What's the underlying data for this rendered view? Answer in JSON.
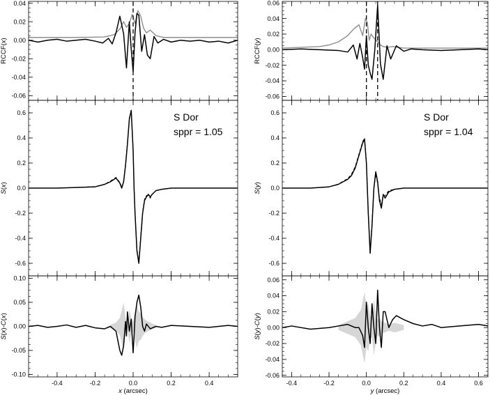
{
  "chart_data": [
    {
      "id": "x-rccf",
      "type": "line",
      "ylabel": "RCCF(x)",
      "xlim": [
        -0.55,
        0.55
      ],
      "ylim": [
        -0.065,
        0.042
      ],
      "xticks": [
        -0.4,
        -0.2,
        0.0,
        0.2,
        0.4
      ],
      "yticks": [
        -0.06,
        -0.04,
        -0.02,
        0.0,
        0.02,
        0.04
      ],
      "ytick_labels": [
        "-0.06",
        "-0.04",
        "-0.02",
        "0.00",
        "0.02",
        "0.04"
      ],
      "show_x_tick_labels": false,
      "vlines": [
        0.0
      ],
      "series": [
        {
          "style": "gray",
          "x": [
            -0.55,
            -0.3,
            -0.15,
            -0.1,
            -0.07,
            -0.05,
            -0.035,
            -0.02,
            -0.005,
            0.01,
            0.025,
            0.04,
            0.055,
            0.07,
            0.09,
            0.12,
            0.16,
            0.55
          ],
          "y": [
            0.003,
            0.003,
            0.0035,
            0.006,
            0.012,
            0.02,
            0.014,
            0.018,
            0.028,
            0.018,
            0.032,
            0.026,
            0.013,
            0.008,
            0.011,
            0.005,
            0.003,
            0.003
          ]
        },
        {
          "style": "black",
          "x": [
            -0.55,
            -0.5,
            -0.45,
            -0.4,
            -0.35,
            -0.3,
            -0.25,
            -0.2,
            -0.16,
            -0.13,
            -0.11,
            -0.09,
            -0.07,
            -0.05,
            -0.035,
            -0.02,
            -0.01,
            0.0,
            0.01,
            0.02,
            0.03,
            0.045,
            0.06,
            0.075,
            0.09,
            0.11,
            0.13,
            0.16,
            0.2,
            0.25,
            0.3,
            0.35,
            0.4,
            0.45,
            0.5,
            0.55
          ],
          "y": [
            0.0,
            -0.002,
            0.0,
            0.001,
            -0.001,
            0.0,
            0.001,
            -0.001,
            -0.003,
            0.002,
            -0.004,
            0.008,
            0.026,
            0.007,
            -0.03,
            0.02,
            -0.01,
            -0.034,
            0.008,
            0.029,
            0.027,
            -0.012,
            0.006,
            -0.016,
            -0.02,
            0.004,
            -0.003,
            0.001,
            -0.002,
            0.0,
            -0.001,
            0.0,
            -0.002,
            -0.001,
            -0.003,
            0.0
          ]
        }
      ]
    },
    {
      "id": "y-rccf",
      "type": "line",
      "ylabel": "RCCF(y)",
      "xlim": [
        -0.45,
        0.65
      ],
      "ylim": [
        -0.065,
        0.062
      ],
      "xticks": [
        -0.4,
        -0.2,
        0.0,
        0.2,
        0.4,
        0.6
      ],
      "yticks": [
        -0.06,
        -0.04,
        -0.02,
        0.0,
        0.02,
        0.04,
        0.06
      ],
      "ytick_labels": [
        "-0.06",
        "-0.04",
        "-0.02",
        "0.00",
        "0.02",
        "0.04",
        "0.06"
      ],
      "show_x_tick_labels": false,
      "vlines": [
        0.0,
        0.06
      ],
      "series": [
        {
          "style": "gray",
          "x": [
            -0.45,
            -0.35,
            -0.25,
            -0.2,
            -0.15,
            -0.1,
            -0.07,
            -0.04,
            -0.02,
            -0.005,
            0.005,
            0.015,
            0.025,
            0.04,
            0.06,
            0.075,
            0.09,
            0.11,
            0.14,
            0.2,
            0.3,
            0.65
          ],
          "y": [
            0.002,
            0.003,
            0.004,
            0.006,
            0.01,
            0.018,
            0.026,
            0.032,
            0.018,
            0.04,
            0.035,
            0.012,
            0.02,
            0.015,
            0.01,
            0.006,
            0.004,
            0.003,
            0.004,
            0.002,
            0.002,
            0.002
          ]
        },
        {
          "style": "black",
          "x": [
            -0.45,
            -0.35,
            -0.25,
            -0.15,
            -0.1,
            -0.07,
            -0.05,
            -0.035,
            -0.02,
            -0.01,
            0.0,
            0.01,
            0.02,
            0.03,
            0.045,
            0.06,
            0.075,
            0.09,
            0.11,
            0.13,
            0.16,
            0.2,
            0.24,
            0.3,
            0.4,
            0.5,
            0.6,
            0.65
          ],
          "y": [
            0.0,
            0.001,
            0.0,
            -0.001,
            -0.003,
            0.006,
            -0.012,
            0.008,
            -0.01,
            -0.025,
            0.018,
            -0.02,
            -0.03,
            -0.038,
            0.0,
            0.057,
            -0.018,
            -0.038,
            0.005,
            -0.012,
            0.005,
            -0.002,
            0.001,
            0.0,
            -0.001,
            0.0,
            0.001,
            0.0
          ]
        }
      ]
    },
    {
      "id": "x-spectrum",
      "type": "line",
      "ylabel": "S(x)",
      "annotation": [
        "S Dor",
        "sppr = 1.05"
      ],
      "xlim": [
        -0.55,
        0.55
      ],
      "ylim": [
        -0.7,
        0.7
      ],
      "xticks": [
        -0.4,
        -0.2,
        0.0,
        0.2,
        0.4
      ],
      "yticks": [
        -0.6,
        -0.4,
        -0.2,
        0.0,
        0.2,
        0.4,
        0.6
      ],
      "ytick_labels": [
        "-0.6",
        "-0.4",
        "-0.2",
        "0.0",
        "0.2",
        "0.4",
        "0.6"
      ],
      "show_x_tick_labels": false,
      "series": [
        {
          "style": "black",
          "x": [
            -0.55,
            -0.4,
            -0.3,
            -0.2,
            -0.15,
            -0.12,
            -0.09,
            -0.07,
            -0.06,
            -0.05,
            -0.04,
            -0.03,
            -0.02,
            -0.01,
            0.0,
            0.005,
            0.01,
            0.02,
            0.03,
            0.04,
            0.05,
            0.06,
            0.07,
            0.08,
            0.09,
            0.1,
            0.12,
            0.15,
            0.2,
            0.3,
            0.4,
            0.55
          ],
          "y": [
            0.0,
            0.0,
            0.005,
            0.01,
            0.03,
            0.05,
            0.08,
            0.04,
            0.0,
            0.05,
            0.18,
            0.35,
            0.55,
            0.62,
            0.3,
            0.0,
            -0.2,
            -0.5,
            -0.6,
            -0.4,
            -0.2,
            -0.1,
            -0.07,
            -0.05,
            -0.07,
            -0.05,
            -0.02,
            -0.01,
            0.0,
            0.0,
            0.0,
            0.0
          ]
        },
        {
          "style": "dashed",
          "x": [
            -0.55,
            -0.4,
            -0.3,
            -0.2,
            -0.15,
            -0.12,
            -0.09,
            -0.07,
            -0.06,
            -0.05,
            -0.04,
            -0.03,
            -0.02,
            -0.01,
            0.0,
            0.005,
            0.01,
            0.02,
            0.03,
            0.04,
            0.05,
            0.06,
            0.07,
            0.08,
            0.09,
            0.1,
            0.12,
            0.15,
            0.2,
            0.3,
            0.4,
            0.55
          ],
          "y": [
            0.0,
            0.0,
            0.005,
            0.012,
            0.03,
            0.055,
            0.085,
            0.045,
            0.005,
            0.055,
            0.19,
            0.36,
            0.56,
            0.61,
            0.3,
            0.0,
            -0.2,
            -0.49,
            -0.59,
            -0.39,
            -0.19,
            -0.09,
            -0.06,
            -0.06,
            -0.08,
            -0.05,
            -0.02,
            -0.01,
            0.0,
            0.0,
            0.0,
            0.0
          ]
        }
      ]
    },
    {
      "id": "y-spectrum",
      "type": "line",
      "ylabel": "S(y)",
      "annotation": [
        "S Dor",
        "sppr = 1.04"
      ],
      "xlim": [
        -0.45,
        0.65
      ],
      "ylim": [
        -0.7,
        0.7
      ],
      "xticks": [
        -0.4,
        -0.2,
        0.0,
        0.2,
        0.4,
        0.6
      ],
      "yticks": [
        -0.6,
        -0.4,
        -0.2,
        0.0,
        0.2,
        0.4,
        0.6
      ],
      "ytick_labels": [
        "-0.6",
        "-0.4",
        "-0.2",
        "0.0",
        "0.2",
        "0.4",
        "0.6"
      ],
      "show_x_tick_labels": false,
      "series": [
        {
          "style": "black",
          "x": [
            -0.45,
            -0.3,
            -0.2,
            -0.15,
            -0.1,
            -0.08,
            -0.06,
            -0.04,
            -0.02,
            -0.01,
            0.0,
            0.01,
            0.02,
            0.03,
            0.04,
            0.05,
            0.06,
            0.07,
            0.08,
            0.09,
            0.1,
            0.12,
            0.15,
            0.2,
            0.3,
            0.4,
            0.5,
            0.65
          ],
          "y": [
            0.0,
            0.0,
            0.01,
            0.03,
            0.07,
            0.1,
            0.16,
            0.26,
            0.36,
            0.39,
            0.2,
            -0.2,
            -0.52,
            -0.3,
            0.0,
            0.13,
            0.05,
            -0.1,
            -0.16,
            -0.05,
            -0.08,
            -0.03,
            -0.01,
            0.0,
            0.0,
            0.0,
            0.0,
            0.0
          ]
        },
        {
          "style": "dashed",
          "x": [
            -0.45,
            -0.3,
            -0.2,
            -0.15,
            -0.1,
            -0.08,
            -0.06,
            -0.04,
            -0.02,
            -0.01,
            0.0,
            0.01,
            0.02,
            0.03,
            0.04,
            0.05,
            0.06,
            0.07,
            0.08,
            0.09,
            0.1,
            0.12,
            0.15,
            0.2,
            0.3,
            0.4,
            0.5,
            0.65
          ],
          "y": [
            0.0,
            0.0,
            0.01,
            0.032,
            0.075,
            0.11,
            0.17,
            0.27,
            0.37,
            0.4,
            0.2,
            -0.2,
            -0.5,
            -0.28,
            0.0,
            0.11,
            0.04,
            -0.08,
            -0.13,
            -0.06,
            -0.06,
            -0.02,
            -0.01,
            0.0,
            0.0,
            0.0,
            0.0,
            0.0
          ]
        }
      ]
    },
    {
      "id": "x-residual",
      "type": "line",
      "ylabel": "S(x)-C(x)",
      "xlabel": "x (arcsec)",
      "xlim": [
        -0.55,
        0.55
      ],
      "ylim": [
        -0.105,
        0.105
      ],
      "xticks": [
        -0.4,
        -0.2,
        0.0,
        0.2,
        0.4
      ],
      "xtick_labels": [
        "-0.4",
        "-0.2",
        "0.0",
        "0.2",
        "0.4"
      ],
      "yticks": [
        -0.1,
        -0.05,
        0.0,
        0.05,
        0.1
      ],
      "ytick_labels": [
        "-0.10",
        "-0.05",
        "0.00",
        "0.05",
        "0.10"
      ],
      "show_x_tick_labels": true,
      "band": {
        "x": [
          -0.12,
          -0.09,
          -0.07,
          -0.05,
          -0.04,
          -0.03,
          -0.02,
          -0.01,
          0.0,
          0.01,
          0.02,
          0.03,
          0.04,
          0.05,
          0.06,
          0.07,
          0.08,
          0.1,
          0.12
        ],
        "y": [
          0.003,
          0.008,
          0.018,
          0.05,
          0.018,
          0.003,
          0.035,
          0.018,
          0.01,
          0.03,
          0.045,
          0.03,
          0.028,
          0.02,
          0.015,
          0.012,
          0.01,
          0.006,
          0.003
        ]
      },
      "series": [
        {
          "style": "black",
          "x": [
            -0.55,
            -0.5,
            -0.45,
            -0.4,
            -0.35,
            -0.3,
            -0.25,
            -0.2,
            -0.15,
            -0.12,
            -0.09,
            -0.07,
            -0.06,
            -0.05,
            -0.04,
            -0.035,
            -0.03,
            -0.02,
            -0.01,
            0.0,
            0.005,
            0.01,
            0.02,
            0.03,
            0.04,
            0.05,
            0.06,
            0.07,
            0.09,
            0.12,
            0.15,
            0.2,
            0.3,
            0.4,
            0.5,
            0.55
          ],
          "y": [
            0.0,
            0.002,
            -0.002,
            0.0,
            0.003,
            -0.002,
            0.002,
            -0.003,
            -0.005,
            0.0,
            -0.01,
            -0.05,
            -0.06,
            -0.04,
            0.01,
            -0.02,
            0.03,
            -0.01,
            0.015,
            -0.055,
            -0.02,
            0.02,
            0.05,
            0.065,
            0.04,
            0.0,
            -0.01,
            0.005,
            -0.005,
            0.0,
            -0.002,
            0.002,
            0.0,
            -0.002,
            0.002,
            0.0
          ]
        }
      ]
    },
    {
      "id": "y-residual",
      "type": "line",
      "ylabel": "S(y)-C(y)",
      "xlabel": "y (arcsec)",
      "xlim": [
        -0.45,
        0.65
      ],
      "ylim": [
        -0.062,
        0.065
      ],
      "xticks": [
        -0.4,
        -0.2,
        0.0,
        0.2,
        0.4,
        0.6
      ],
      "xtick_labels": [
        "-0.4",
        "-0.2",
        "0.0",
        "0.2",
        "0.4",
        "0.6"
      ],
      "yticks": [
        -0.06,
        -0.04,
        -0.02,
        0.0,
        0.02,
        0.04,
        0.06
      ],
      "ytick_labels": [
        "-0.06",
        "-0.04",
        "-0.02",
        "0.00",
        "0.02",
        "0.04",
        "0.06"
      ],
      "show_x_tick_labels": true,
      "band": {
        "x": [
          -0.15,
          -0.1,
          -0.06,
          -0.03,
          -0.01,
          0.0,
          0.01,
          0.02,
          0.03,
          0.04,
          0.05,
          0.06,
          0.07,
          0.08,
          0.1,
          0.12,
          0.15,
          0.2
        ],
        "y": [
          0.003,
          0.008,
          0.012,
          0.022,
          0.045,
          0.025,
          0.03,
          0.015,
          0.012,
          0.035,
          0.02,
          0.01,
          0.012,
          0.008,
          0.006,
          0.004,
          0.006,
          0.003
        ]
      },
      "series": [
        {
          "style": "black",
          "x": [
            -0.45,
            -0.4,
            -0.3,
            -0.2,
            -0.15,
            -0.1,
            -0.06,
            -0.04,
            -0.02,
            -0.01,
            0.0,
            0.01,
            0.02,
            0.03,
            0.04,
            0.05,
            0.06,
            0.07,
            0.08,
            0.09,
            0.1,
            0.12,
            0.14,
            0.16,
            0.2,
            0.25,
            0.3,
            0.35,
            0.4,
            0.5,
            0.6,
            0.65
          ],
          "y": [
            0.0,
            0.002,
            -0.002,
            0.0,
            0.002,
            0.004,
            0.0,
            0.0,
            -0.01,
            -0.025,
            0.032,
            0.0,
            -0.02,
            0.03,
            0.0,
            -0.02,
            0.047,
            0.0,
            -0.025,
            0.02,
            0.02,
            0.0,
            0.01,
            0.015,
            0.01,
            0.005,
            0.002,
            0.004,
            0.0,
            0.002,
            0.004,
            0.002
          ]
        }
      ]
    }
  ]
}
